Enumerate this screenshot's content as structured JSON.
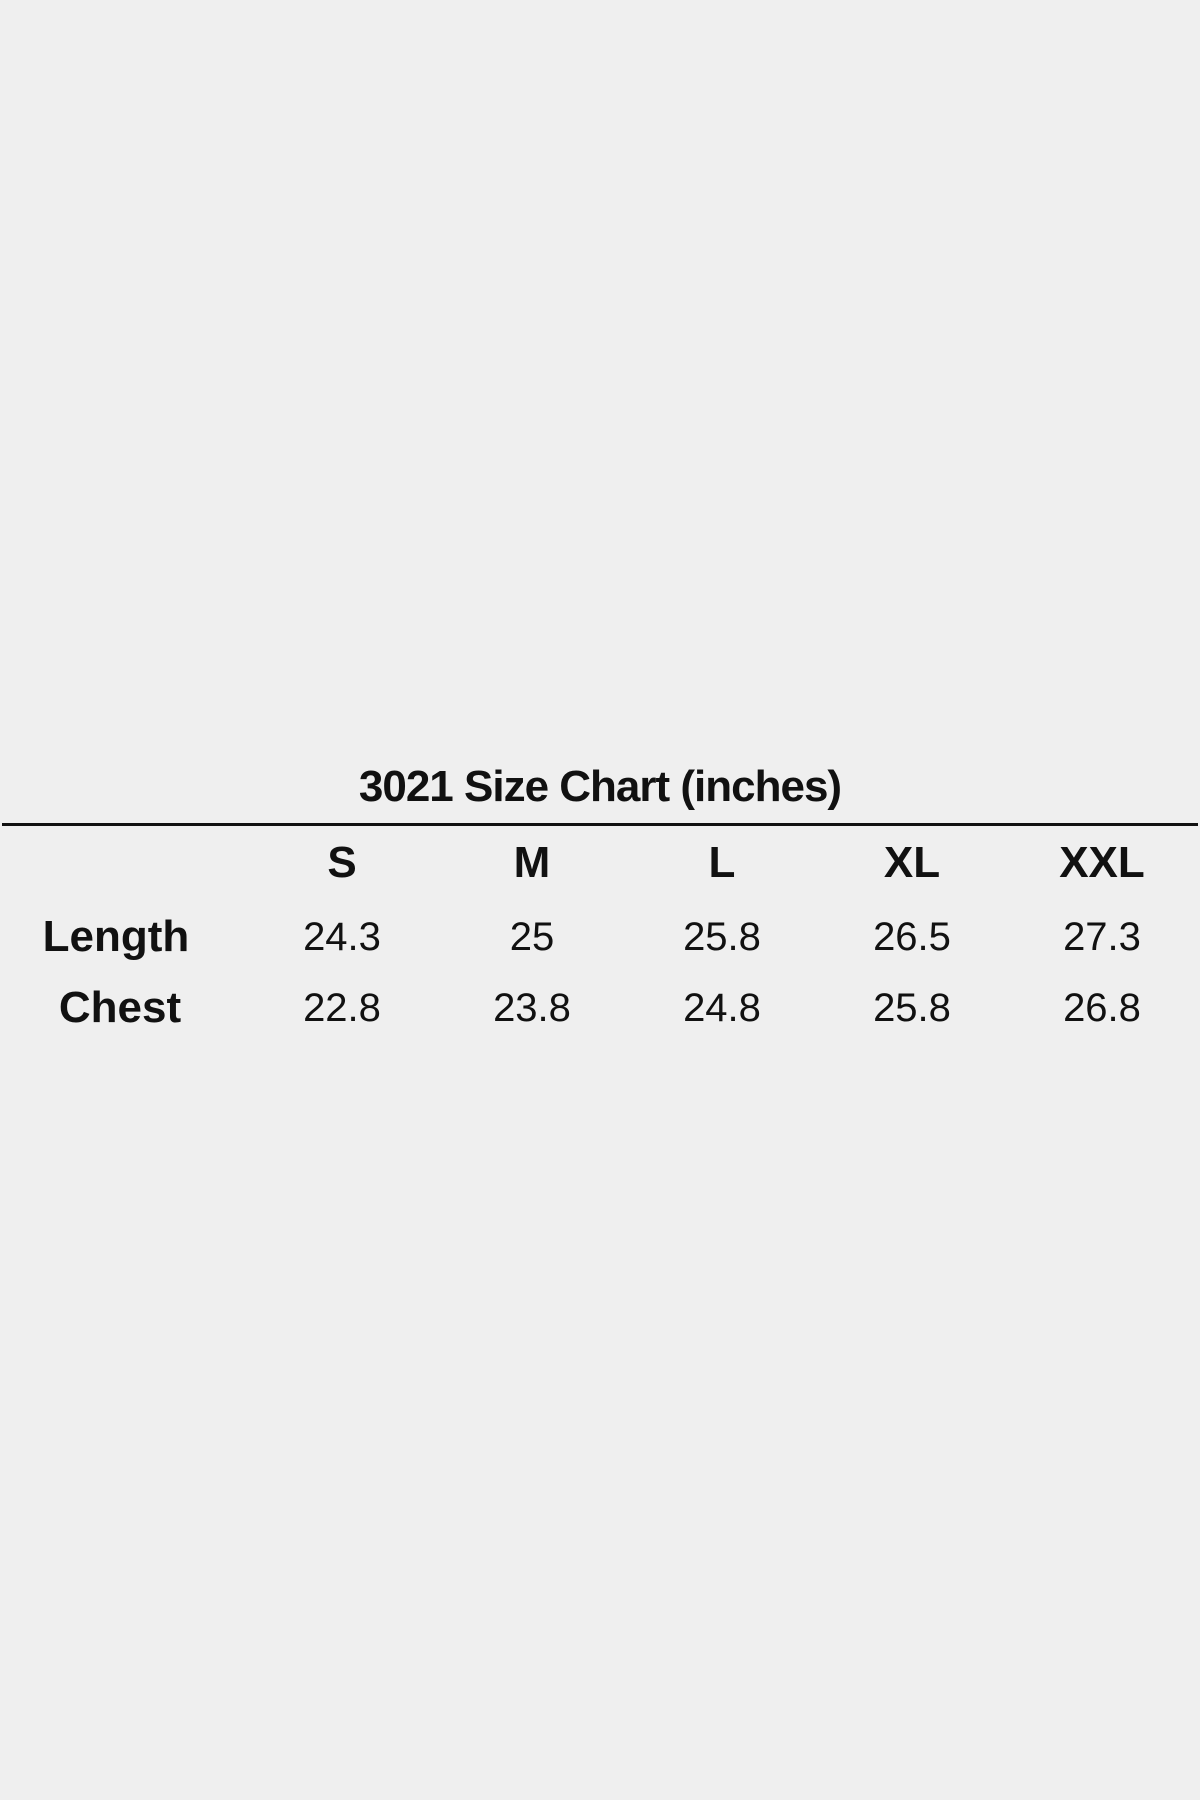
{
  "chart_data": {
    "type": "table",
    "title": "3021 Size Chart (inches)",
    "columns": [
      "S",
      "M",
      "L",
      "XL",
      "XXL"
    ],
    "rows": [
      {
        "label": "Length",
        "values": [
          "24.3",
          "25",
          "25.8",
          "26.5",
          "27.3"
        ]
      },
      {
        "label": "Chest",
        "values": [
          "22.8",
          "23.8",
          "24.8",
          "25.8",
          "26.8"
        ]
      }
    ]
  }
}
